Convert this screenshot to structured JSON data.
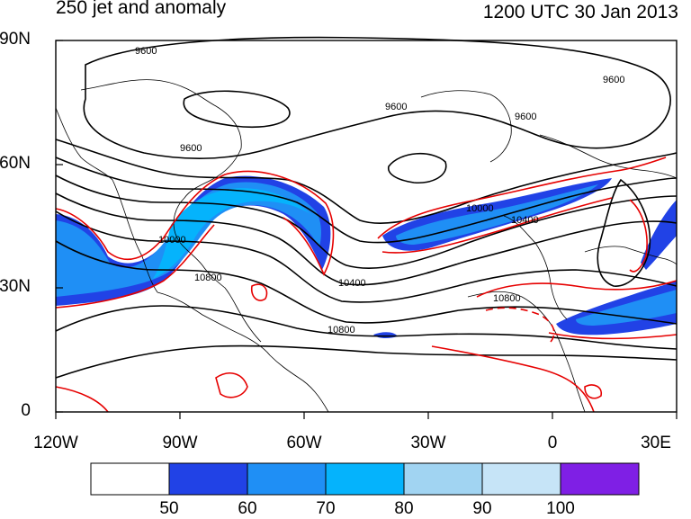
{
  "title_left": "250 jet and anomaly",
  "title_right": "1200 UTC 30 Jan 2013",
  "lat_ticks": [
    {
      "label": "90N"
    },
    {
      "label": "60N"
    },
    {
      "label": "30N"
    },
    {
      "label": "0"
    }
  ],
  "lon_ticks": [
    {
      "label": "120W"
    },
    {
      "label": "90W"
    },
    {
      "label": "60W"
    },
    {
      "label": "30W"
    },
    {
      "label": "0"
    },
    {
      "label": "30E"
    }
  ],
  "contour_labels": [
    {
      "text": "9600"
    },
    {
      "text": "9600"
    },
    {
      "text": "9600"
    },
    {
      "text": "9600"
    },
    {
      "text": "9600"
    },
    {
      "text": "10000"
    },
    {
      "text": "10000"
    },
    {
      "text": "10400"
    },
    {
      "text": "10400"
    },
    {
      "text": "10800"
    },
    {
      "text": "10800"
    },
    {
      "text": "10800"
    }
  ],
  "colorbar": {
    "colors": [
      "#ffffff",
      "#2142e6",
      "#1f8ff5",
      "#05b3fc",
      "#a1d4f2",
      "#c6e4f7",
      "#7f1fe5"
    ],
    "labels": [
      "50",
      "60",
      "70",
      "80",
      "90",
      "100"
    ]
  },
  "colors": {
    "contour": "#000000",
    "anomaly": "#e60000",
    "coast": "#000000"
  }
}
